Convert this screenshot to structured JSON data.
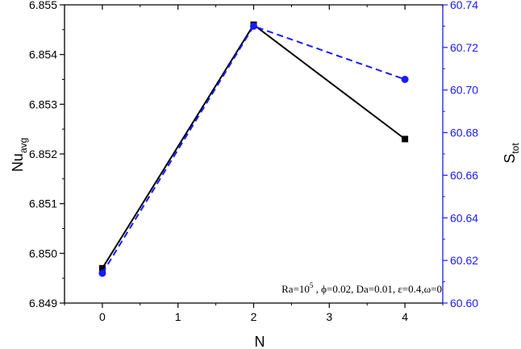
{
  "chart_data": {
    "type": "line",
    "x": [
      0,
      2,
      4
    ],
    "xlabel": "N",
    "xlim": [
      -0.5,
      4.5
    ],
    "xticks": [
      "0",
      "1",
      "2",
      "3",
      "4"
    ],
    "y_left": {
      "label_main": "Nu",
      "label_sub": "avg",
      "lim": [
        6.849,
        6.855
      ],
      "ticks": [
        "6.849",
        "6.850",
        "6.851",
        "6.852",
        "6.853",
        "6.854",
        "6.855"
      ]
    },
    "y_right": {
      "label_main": "S",
      "label_sub": "tot",
      "lim": [
        60.6,
        60.74
      ],
      "ticks": [
        "60.60",
        "60.62",
        "60.64",
        "60.66",
        "60.68",
        "60.70",
        "60.72",
        "60.74"
      ],
      "color": "#1a1aff"
    },
    "series": [
      {
        "axis": "left",
        "values": [
          6.8497,
          6.8546,
          6.8523
        ],
        "color": "#000000",
        "line": "solid",
        "marker": "square"
      },
      {
        "axis": "right",
        "values": [
          60.614,
          60.73,
          60.705
        ],
        "color": "#1a1aff",
        "line": "dashed",
        "marker": "circle"
      }
    ],
    "annotation": {
      "part1": "Ra=10",
      "sup": "5",
      "part2": " , ϕ=0.02, Da=0.01, ε=0.4,ω=0"
    }
  }
}
